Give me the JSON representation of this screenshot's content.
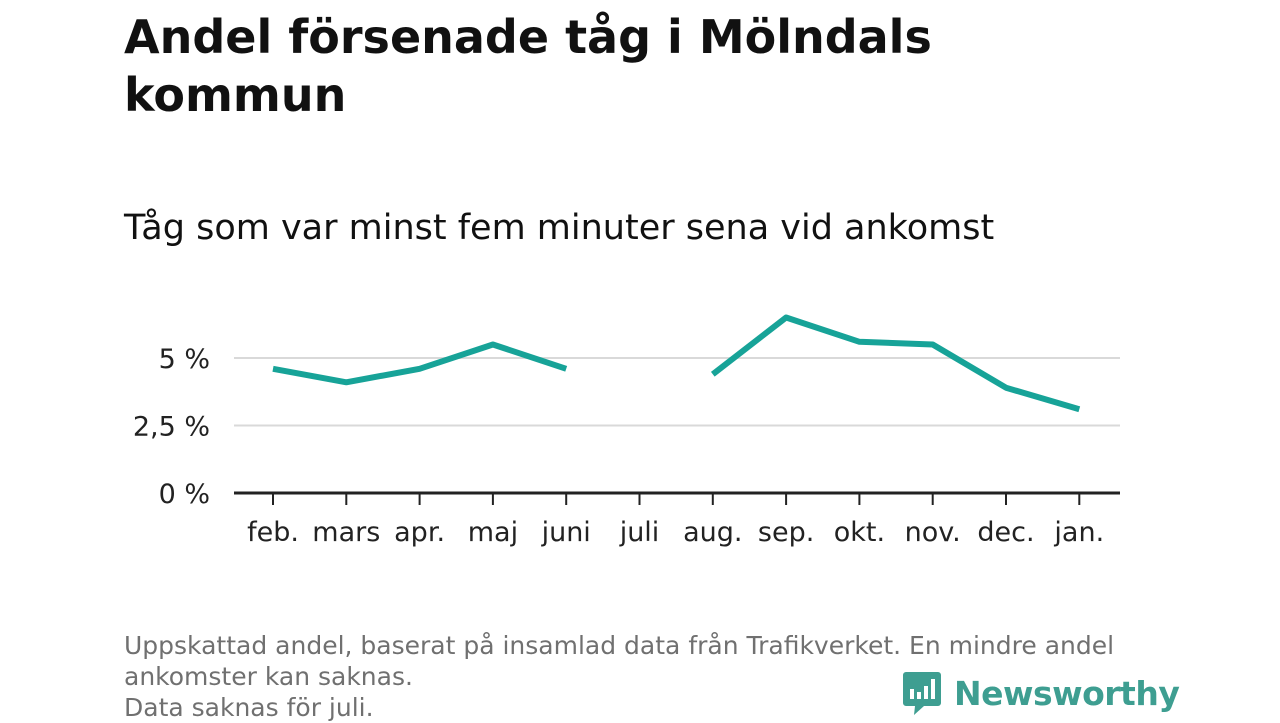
{
  "title": "Andel försenade tåg i Mölndals kommun",
  "subtitle": "Tåg som var minst fem minuter sena vid ankomst",
  "chart_data": {
    "type": "line",
    "categories": [
      "feb.",
      "mars",
      "apr.",
      "maj",
      "juni",
      "juli",
      "aug.",
      "sep.",
      "okt.",
      "nov.",
      "dec.",
      "jan."
    ],
    "series": [
      {
        "values": [
          4.6,
          4.1,
          4.6,
          5.5,
          4.6,
          null,
          4.4,
          6.5,
          5.6,
          5.5,
          3.9,
          3.1
        ]
      }
    ],
    "yticks": [
      0,
      2.5,
      5
    ],
    "ytick_labels": [
      "0 %",
      "2,5 %",
      "5 %"
    ],
    "ylim": [
      0,
      6.5
    ],
    "grid": true,
    "line_color": "#17a398",
    "grid_color": "#d9d9d9",
    "axis_color": "#222222"
  },
  "footnote": {
    "lines": [
      "Uppskattad andel, baserat på insamlad data från Trafikverket. En mindre andel",
      "ankomster kan saknas.",
      "Data saknas för juli."
    ]
  },
  "brand": {
    "name": "Newsworthy",
    "color": "#3e9e91"
  }
}
